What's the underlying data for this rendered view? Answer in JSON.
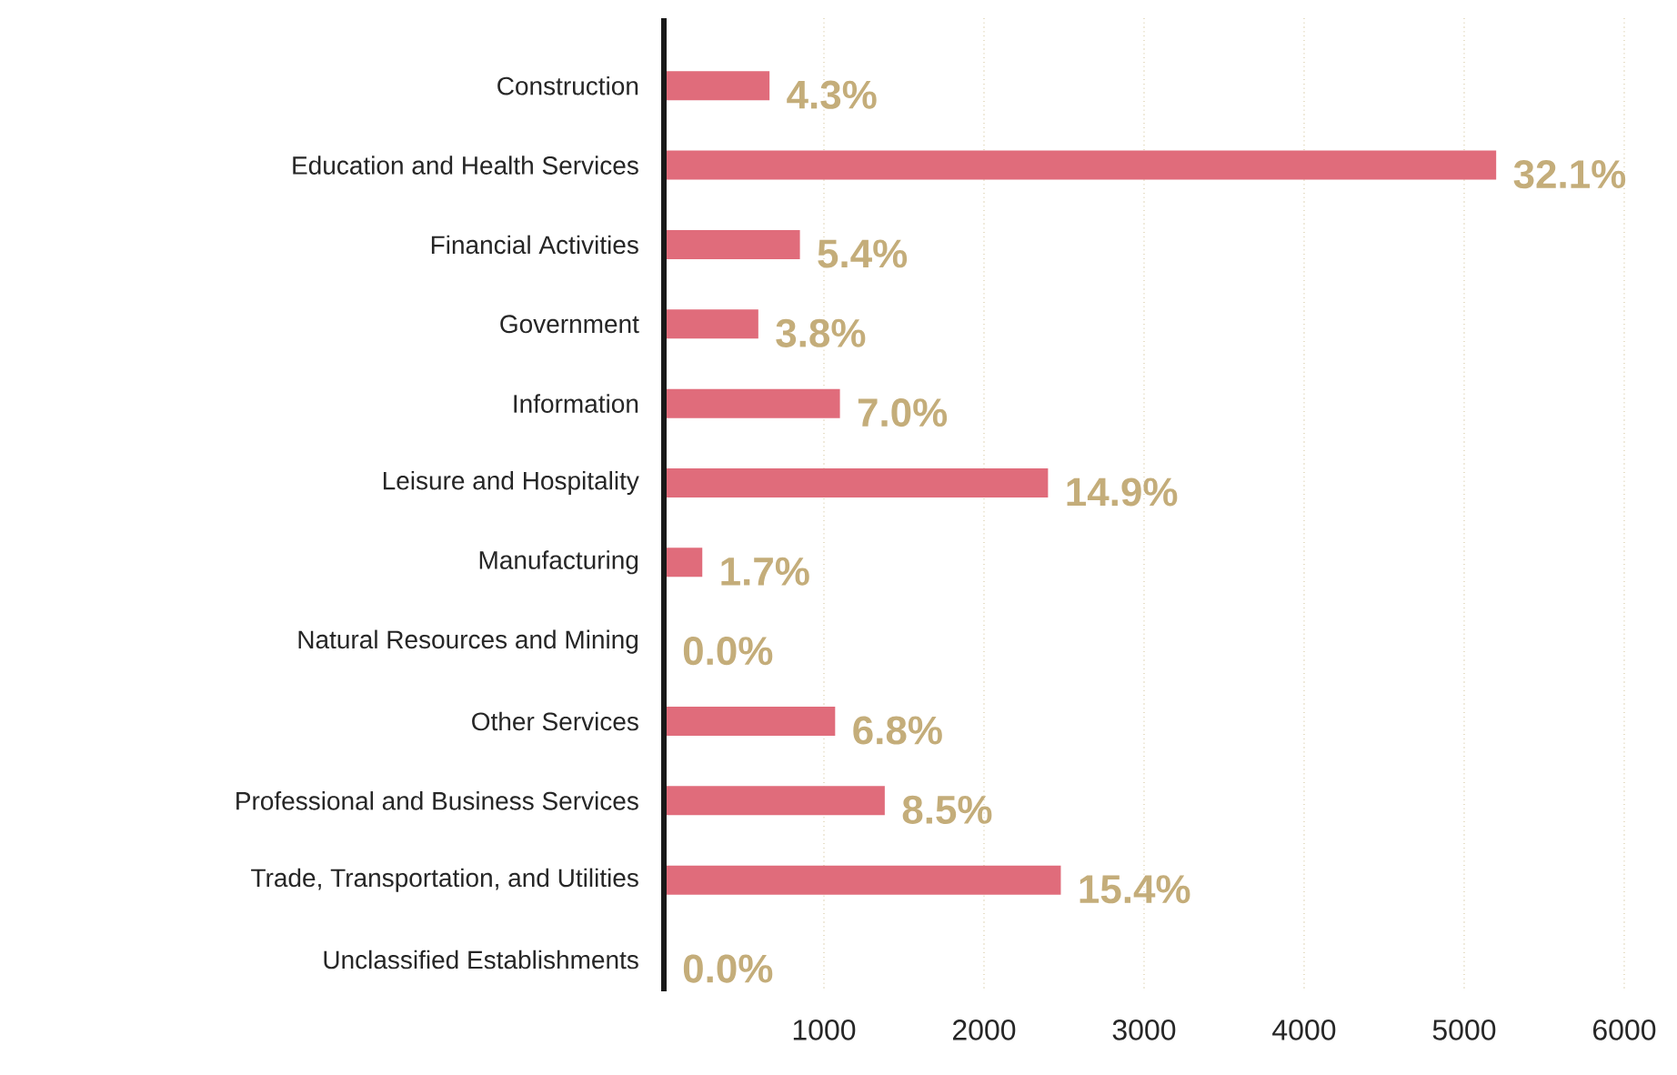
{
  "chart_data": {
    "type": "bar",
    "orientation": "horizontal",
    "categories": [
      "Construction",
      "Education and Health Services",
      "Financial Activities",
      "Government",
      "Information",
      "Leisure and Hospitality",
      "Manufacturing",
      "Natural Resources and Mining",
      "Other Services",
      "Professional and Business Services",
      "Trade, Transportation, and Utilities",
      "Unclassified Establishments"
    ],
    "values": [
      660,
      5200,
      850,
      590,
      1100,
      2400,
      240,
      10,
      1070,
      1380,
      2480,
      10
    ],
    "annotations": [
      {
        "text": "4.3%",
        "x": 660,
        "y": "Construction"
      },
      {
        "text": "32.1%",
        "x": 5200,
        "y": "Education and Health Services"
      },
      {
        "text": "5.4%",
        "x": 850,
        "y": "Financial Activities"
      },
      {
        "text": "3.8%",
        "x": 590,
        "y": "Government"
      },
      {
        "text": "7.0%",
        "x": 1100,
        "y": "Information"
      },
      {
        "text": "14.9%",
        "x": 2400,
        "y": "Leisure and Hospitality"
      },
      {
        "text": "1.7%",
        "x": 240,
        "y": "Manufacturing"
      },
      {
        "text": "0.0%",
        "x": 10,
        "y": "Natural Resources and Mining"
      },
      {
        "text": "6.8%",
        "x": 1070,
        "y": "Other Services"
      },
      {
        "text": "8.5%",
        "x": 1380,
        "y": "Professional and Business Services"
      },
      {
        "text": "15.4%",
        "x": 2480,
        "y": "Trade, Transportation, and Utilities"
      },
      {
        "text": "0.0%",
        "x": 10,
        "y": "Unclassified Establishments"
      }
    ],
    "color": "#e06c7b",
    "xlim": [
      0,
      6000
    ],
    "xticks": [
      1000,
      2000,
      3000,
      4000,
      5000,
      6000
    ],
    "grid": "x"
  }
}
